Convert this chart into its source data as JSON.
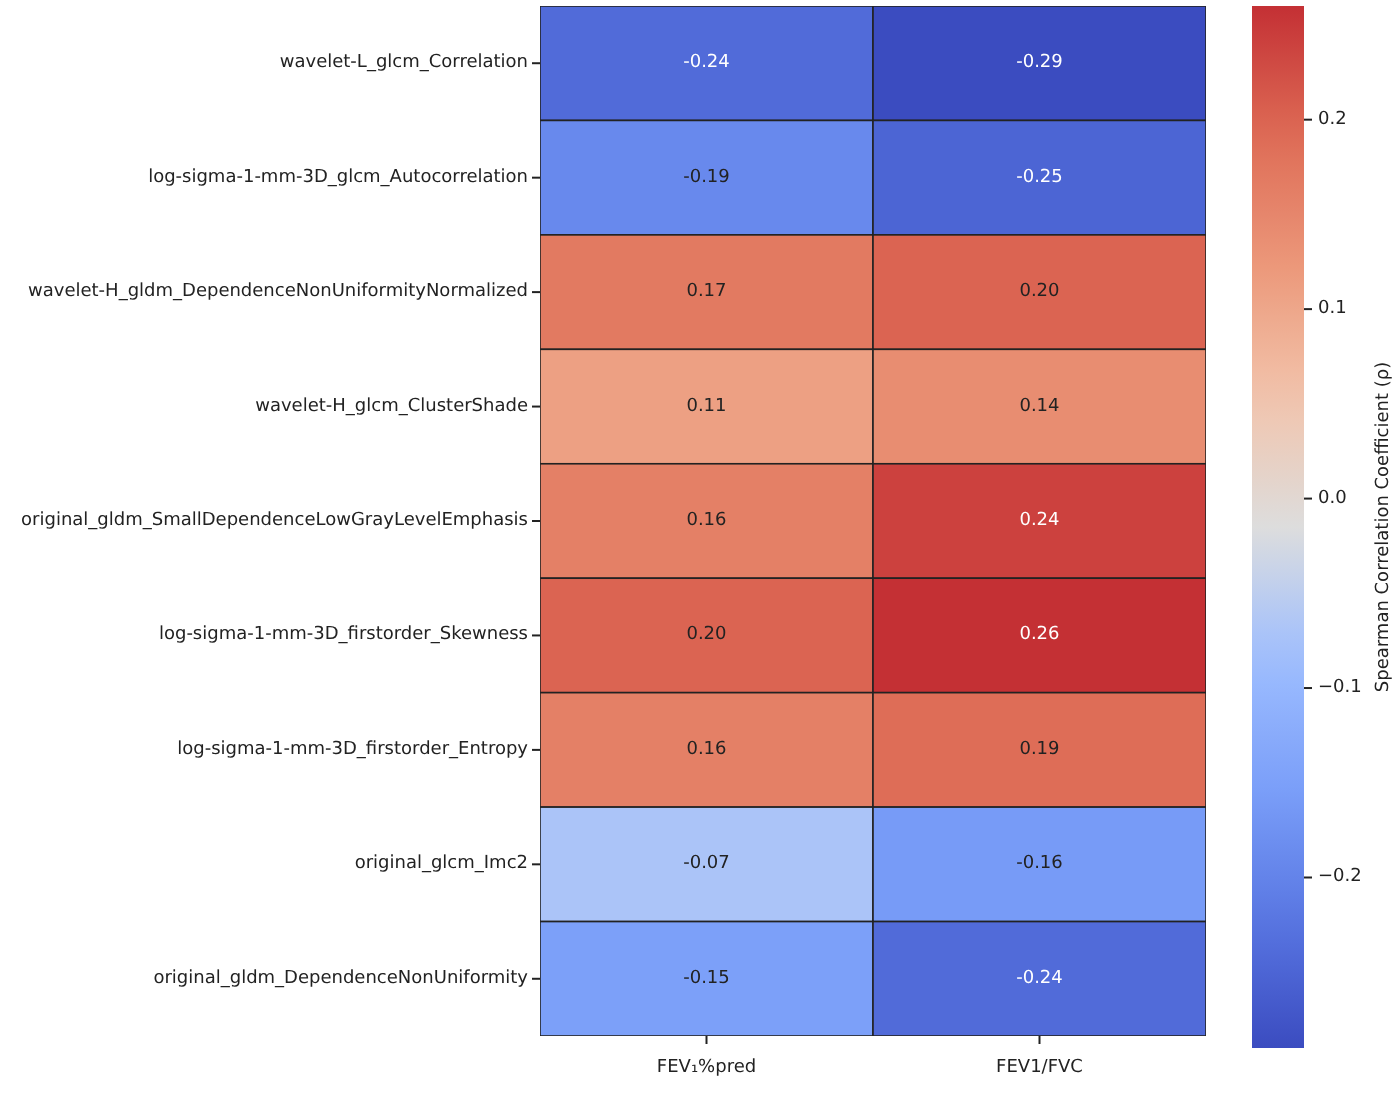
{
  "chart_data": {
    "type": "heatmap",
    "categories": [
      "FEV₁%pred",
      "FEV1/FVC"
    ],
    "y_categories": [
      "wavelet-L_glcm_Correlation",
      "log-sigma-1-mm-3D_glcm_Autocorrelation",
      "wavelet-H_gldm_DependenceNonUniformityNormalized",
      "wavelet-H_glcm_ClusterShade",
      "original_gldm_SmallDependenceLowGrayLevelEmphasis",
      "log-sigma-1-mm-3D_firstorder_Skewness",
      "log-sigma-1-mm-3D_firstorder_Entropy",
      "original_glcm_Imc2",
      "original_gldm_DependenceNonUniformity"
    ],
    "cells": [
      [
        -0.24,
        -0.29
      ],
      [
        -0.19,
        -0.25
      ],
      [
        0.17,
        0.2
      ],
      [
        0.11,
        0.14
      ],
      [
        0.16,
        0.24
      ],
      [
        0.2,
        0.26
      ],
      [
        0.16,
        0.19
      ],
      [
        -0.07,
        -0.16
      ],
      [
        -0.15,
        -0.24
      ]
    ],
    "cell_labels": [
      [
        "-0.24",
        "-0.29"
      ],
      [
        "-0.19",
        "-0.25"
      ],
      [
        "0.17",
        "0.20"
      ],
      [
        "0.11",
        "0.14"
      ],
      [
        "0.16",
        "0.24"
      ],
      [
        "0.20",
        "0.26"
      ],
      [
        "0.16",
        "0.19"
      ],
      [
        "-0.07",
        "-0.16"
      ],
      [
        "-0.15",
        "-0.24"
      ]
    ],
    "clabel": "Spearman Correlation Coefficient (ρ)",
    "clim": [
      -0.29,
      0.26
    ],
    "cticks": [
      {
        "value": -0.2,
        "label": "−0.2"
      },
      {
        "value": -0.1,
        "label": "−0.1"
      },
      {
        "value": 0,
        "label": "0.0"
      },
      {
        "value": 0.1,
        "label": "0.1"
      },
      {
        "value": 0.2,
        "label": "0.2"
      }
    ]
  }
}
